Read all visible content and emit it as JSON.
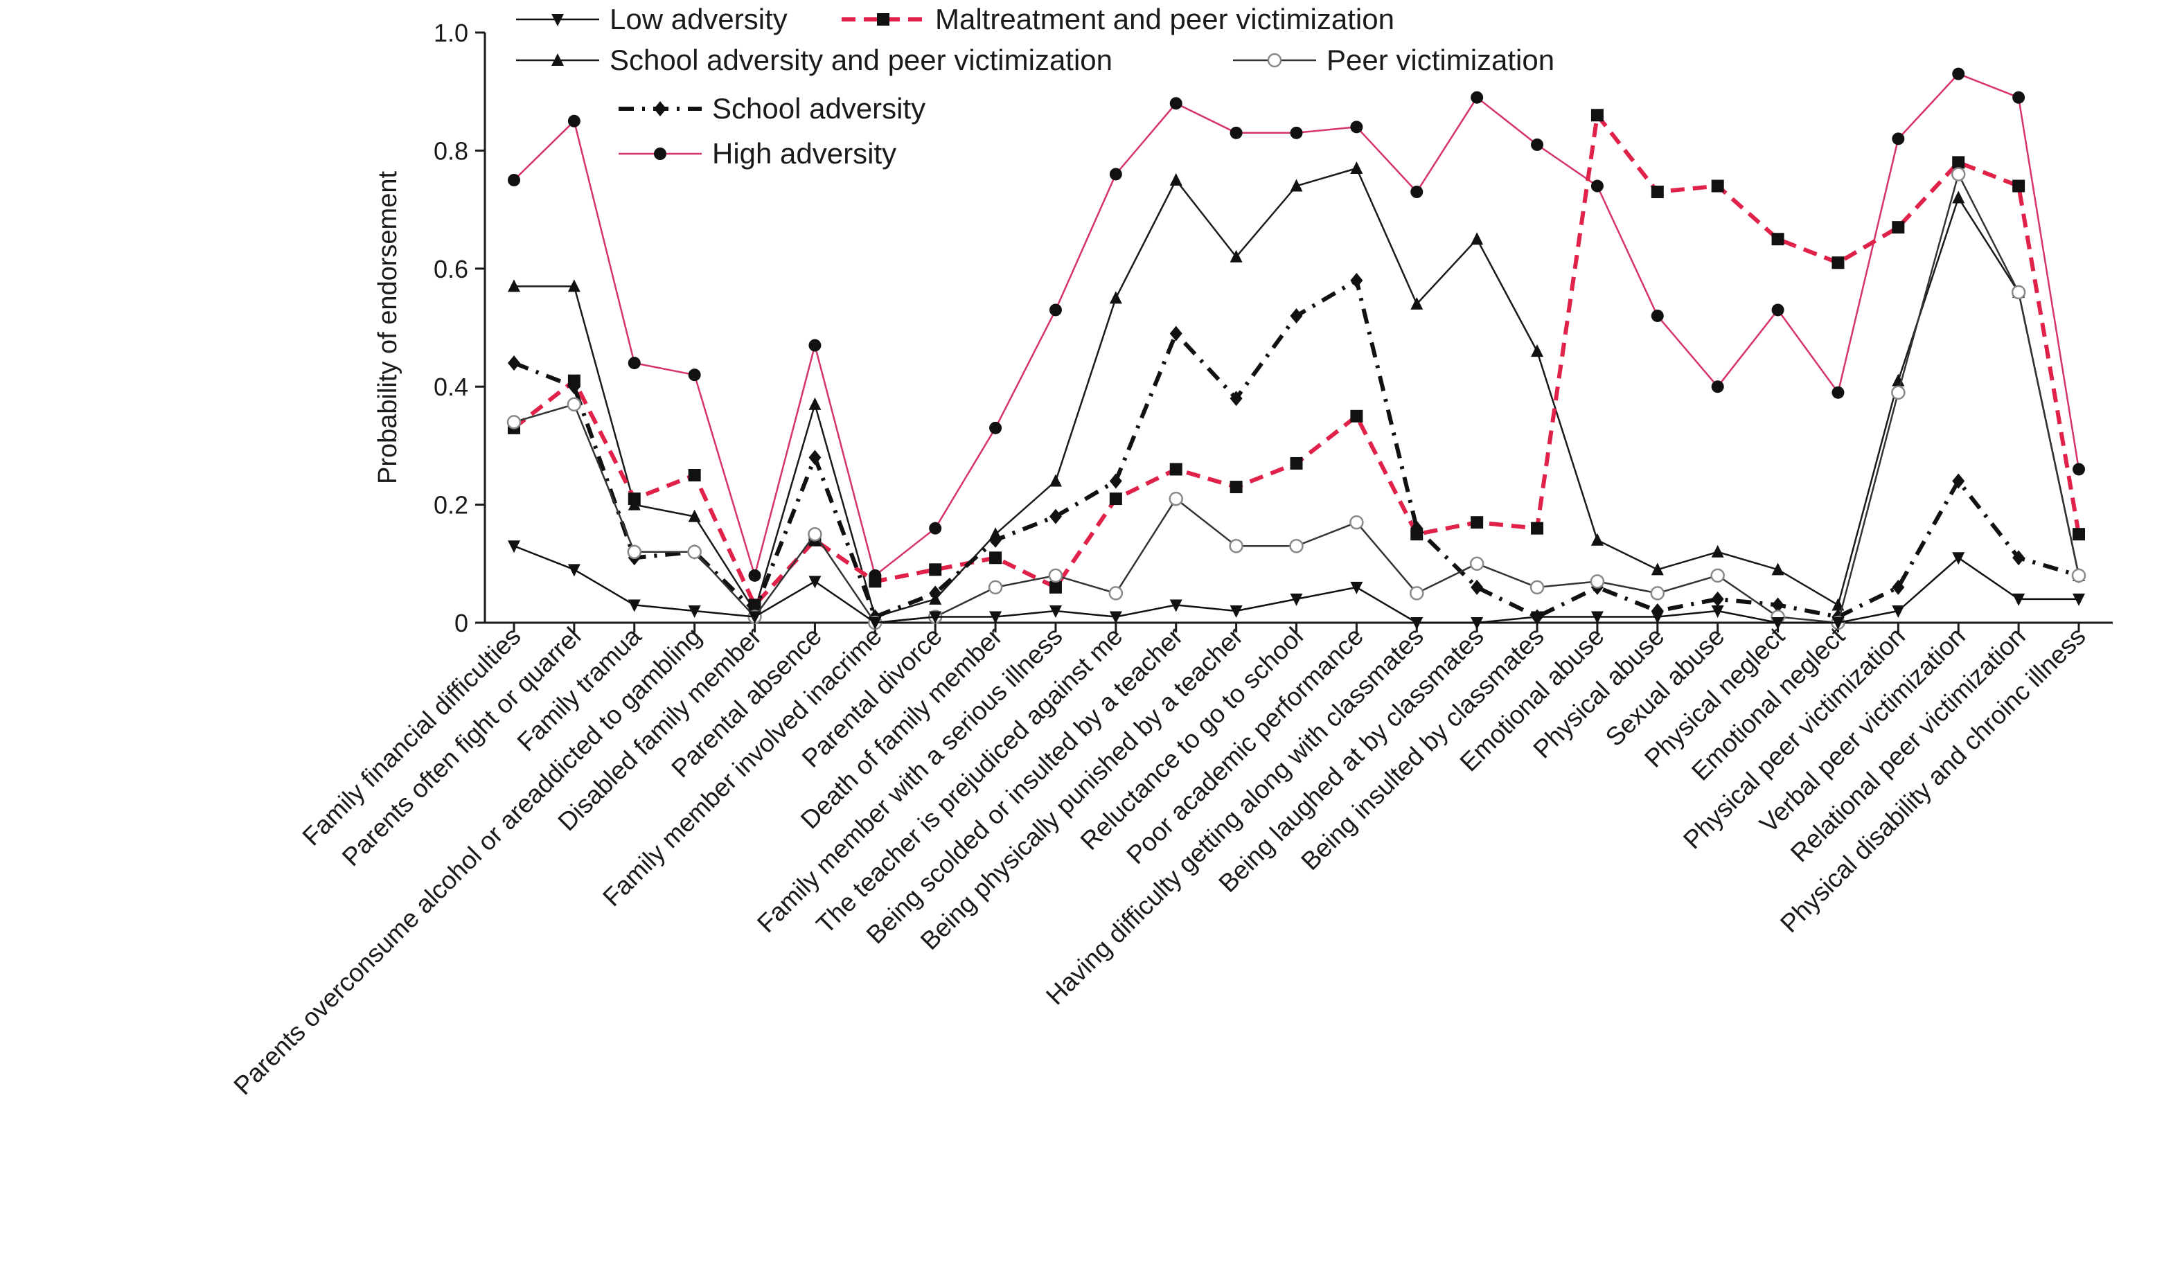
{
  "chart_data": {
    "type": "line",
    "title": "",
    "xlabel": "",
    "ylabel": "Probability of endorsement",
    "ylim": [
      0,
      1.0
    ],
    "yticks": [
      "0",
      "0.2",
      "0.4",
      "0.6",
      "0.8",
      "1.0"
    ],
    "ytick_values": [
      0,
      0.2,
      0.4,
      0.6,
      0.8,
      1.0
    ],
    "grid": false,
    "legend_position": "top-left",
    "categories": [
      "Family financial difficulties",
      "Parents often fight or quarrel",
      "Family tramua",
      "Parents overconsume alcohol or areaddicted to gambling",
      "Disabled family member",
      "Parental absence",
      "Family member involved inacrime",
      "Parental divorce",
      "Death of family member",
      "Family member with a serious illness",
      "The teacher is prejudiced against me",
      "Being scolded or insulted by a teacher",
      "Being physically punished by a teacher",
      "Reluctance to go to school",
      "Poor academic performance",
      "Having difficulty getting along with classmates",
      "Being laughed at by classmates",
      "Being insulted by classmates",
      "Emotional abuse",
      "Physical abuse",
      "Sexual abuse",
      "Physical neglect",
      "Emotional neglect",
      "Physical peer victimization",
      "Verbal peer victimization",
      "Relational peer victimization",
      "Physical disability and chroinc illness"
    ],
    "series": [
      {
        "name": "High adversity",
        "color": "#d6336c",
        "marker": "circle",
        "dash": "solid",
        "values": [
          0.75,
          0.85,
          0.44,
          0.42,
          0.08,
          0.47,
          0.08,
          0.16,
          0.33,
          0.53,
          0.76,
          0.88,
          0.83,
          0.83,
          0.84,
          0.73,
          0.89,
          0.81,
          0.74,
          0.52,
          0.4,
          0.53,
          0.39,
          0.82,
          0.93,
          0.89,
          0.26
        ]
      },
      {
        "name": "School adversity and peer victimization",
        "color": "#1a1a1a",
        "marker": "triangle-up",
        "dash": "solid",
        "values": [
          0.57,
          0.57,
          0.2,
          0.18,
          0.02,
          0.37,
          0.01,
          0.04,
          0.15,
          0.24,
          0.55,
          0.75,
          0.62,
          0.74,
          0.77,
          0.54,
          0.65,
          0.46,
          0.14,
          0.09,
          0.12,
          0.09,
          0.03,
          0.41,
          0.72,
          0.56,
          0.08
        ]
      },
      {
        "name": "Maltreatment and peer victimization",
        "color": "#e0224a",
        "marker": "square",
        "dash": "dashed",
        "values": [
          0.33,
          0.41,
          0.21,
          0.25,
          0.03,
          0.14,
          0.07,
          0.09,
          0.11,
          0.06,
          0.21,
          0.26,
          0.23,
          0.27,
          0.35,
          0.15,
          0.17,
          0.16,
          0.86,
          0.73,
          0.74,
          0.65,
          0.61,
          0.67,
          0.78,
          0.74,
          0.15
        ]
      },
      {
        "name": "School adversity",
        "color": "#111111",
        "marker": "diamond",
        "dash": "dashdot",
        "values": [
          0.44,
          0.4,
          0.11,
          0.12,
          0.02,
          0.28,
          0.01,
          0.05,
          0.14,
          0.18,
          0.24,
          0.49,
          0.38,
          0.52,
          0.58,
          0.16,
          0.06,
          0.01,
          0.06,
          0.02,
          0.04,
          0.03,
          0.01,
          0.06,
          0.24,
          0.11,
          0.08
        ]
      },
      {
        "name": "Peer victimization",
        "color": "#333333",
        "marker": "open-circle",
        "dash": "solid",
        "values": [
          0.34,
          0.37,
          0.12,
          0.12,
          0.01,
          0.15,
          0.0,
          0.01,
          0.06,
          0.08,
          0.05,
          0.21,
          0.13,
          0.13,
          0.17,
          0.05,
          0.1,
          0.06,
          0.07,
          0.05,
          0.08,
          0.01,
          0.0,
          0.39,
          0.76,
          0.56,
          0.08
        ]
      },
      {
        "name": "Low adversity",
        "color": "#111111",
        "marker": "triangle-down",
        "dash": "solid",
        "values": [
          0.13,
          0.09,
          0.03,
          0.02,
          0.01,
          0.07,
          0.0,
          0.01,
          0.01,
          0.02,
          0.01,
          0.03,
          0.02,
          0.04,
          0.06,
          0.0,
          0.0,
          0.01,
          0.01,
          0.01,
          0.02,
          0.0,
          0.0,
          0.02,
          0.11,
          0.04,
          0.04
        ]
      }
    ],
    "legend_order": [
      "Low adversity",
      "Maltreatment and peer victimization",
      "School adversity and peer victimization",
      "Peer victimization",
      "School adversity",
      "High adversity"
    ]
  }
}
